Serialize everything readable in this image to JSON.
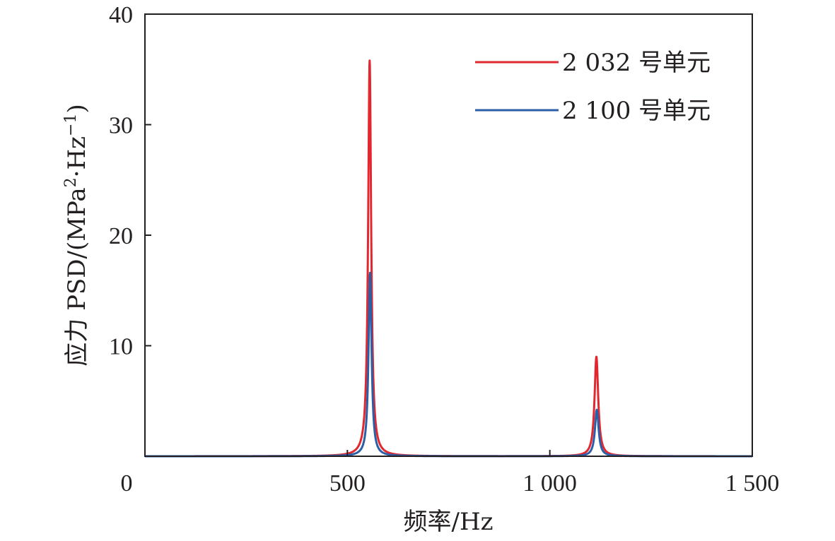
{
  "chart_data": {
    "type": "line",
    "title": "",
    "xlabel": "频率/Hz",
    "ylabel": "应力 PSD/(MPa²·Hz⁻¹)",
    "ylabel_parts": {
      "main": "应力 PSD/(MPa",
      "sup1": "2",
      "mid": "·Hz",
      "sup2": "−1",
      "end": ")"
    },
    "xlim": [
      0,
      1500
    ],
    "ylim": [
      0,
      40
    ],
    "x_ticks": [
      {
        "value": 0,
        "label": "0"
      },
      {
        "value": 500,
        "label": "500"
      },
      {
        "value": 1000,
        "label": "1 000"
      },
      {
        "value": 1500,
        "label": "1 500"
      }
    ],
    "y_ticks": [
      {
        "value": 10,
        "label": "10"
      },
      {
        "value": 20,
        "label": "20"
      },
      {
        "value": 30,
        "label": "30"
      },
      {
        "value": 40,
        "label": "40"
      }
    ],
    "grid": false,
    "legend_position": "top-right",
    "series": [
      {
        "name": "2 032 号单元",
        "color": "#e0282e",
        "peaks": [
          {
            "f": 555,
            "amp": 35.8,
            "hw": 4.5
          },
          {
            "f": 1115,
            "amp": 9.0,
            "hw": 5.5
          }
        ]
      },
      {
        "name": "2 100 号单元",
        "color": "#2b5fa8",
        "peaks": [
          {
            "f": 556,
            "amp": 16.6,
            "hw": 4.5
          },
          {
            "f": 1116,
            "amp": 4.2,
            "hw": 5.5
          }
        ]
      }
    ]
  }
}
